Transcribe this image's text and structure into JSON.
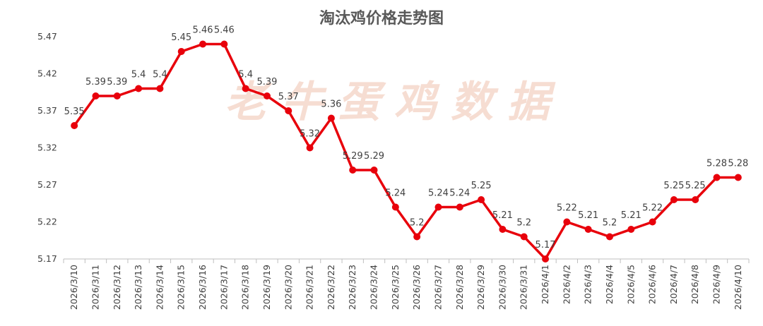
{
  "watermark": "老牛蛋鸡数据",
  "colors": {
    "line": "#e8000b",
    "marker": "#e8000b",
    "axis": "#bfbfbf",
    "text": "#404040"
  },
  "chart_data": {
    "type": "line",
    "title": "淘汰鸡价格走势图",
    "xlabel": "",
    "ylabel": "",
    "ylim": [
      5.17,
      5.47
    ],
    "yticks": [
      5.17,
      5.22,
      5.27,
      5.32,
      5.37,
      5.42,
      5.47
    ],
    "grid": false,
    "legend": "none",
    "categories": [
      "2026/3/10",
      "2026/3/11",
      "2026/3/12",
      "2026/3/13",
      "2026/3/14",
      "2026/3/15",
      "2026/3/16",
      "2026/3/17",
      "2026/3/18",
      "2026/3/19",
      "2026/3/20",
      "2026/3/21",
      "2026/3/22",
      "2026/3/23",
      "2026/3/24",
      "2026/3/25",
      "2026/3/26",
      "2026/3/27",
      "2026/3/28",
      "2026/3/29",
      "2026/3/30",
      "2026/3/31",
      "2026/4/1",
      "2026/4/2",
      "2026/4/3",
      "2026/4/4",
      "2026/4/5",
      "2026/4/6",
      "2026/4/7",
      "2026/4/8",
      "2026/4/9",
      "2026/4/10"
    ],
    "values": [
      5.35,
      5.39,
      5.39,
      5.4,
      5.4,
      5.45,
      5.46,
      5.46,
      5.4,
      5.39,
      5.37,
      5.32,
      5.36,
      5.29,
      5.29,
      5.24,
      5.2,
      5.24,
      5.24,
      5.25,
      5.21,
      5.2,
      5.17,
      5.22,
      5.21,
      5.2,
      5.21,
      5.22,
      5.25,
      5.25,
      5.28,
      5.28
    ]
  }
}
